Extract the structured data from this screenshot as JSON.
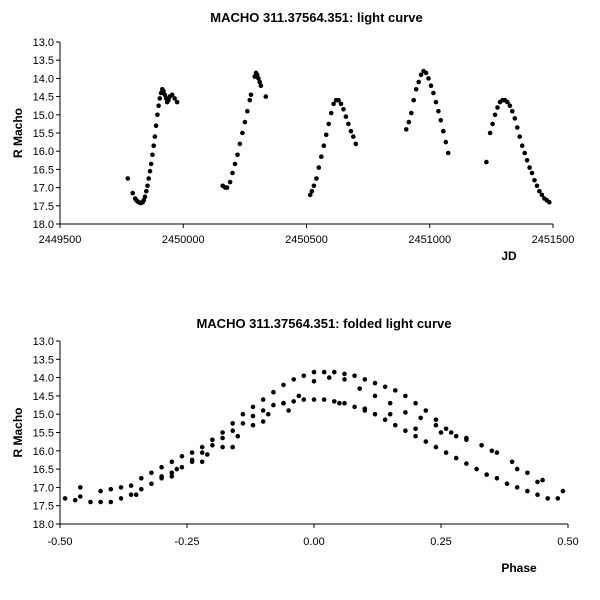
{
  "chart_data": [
    {
      "type": "scatter",
      "title": "MACHO 311.37564.351: light curve",
      "xlabel": "JD",
      "ylabel": "R Macho",
      "xlim": [
        2449500,
        2451500
      ],
      "ylim": [
        13.0,
        18.0
      ],
      "y_inverted": true,
      "grid": false,
      "legend": "none",
      "marker_color": "#000000",
      "xticks": [
        "2449500",
        "2450000",
        "2450500",
        "2451000",
        "2451500"
      ],
      "yticks": [
        "13.0",
        "13.5",
        "14.0",
        "14.5",
        "15.0",
        "15.5",
        "16.0",
        "16.5",
        "17.0",
        "17.5",
        "18.0"
      ],
      "series": [
        {
          "x": [
            2449775,
            2449795,
            2449805,
            2449810,
            2449815,
            2449820,
            2449825,
            2449830,
            2449835,
            2449840,
            2449845,
            2449850,
            2449855,
            2449860,
            2449865,
            2449870,
            2449875,
            2449880,
            2449885,
            2449890,
            2449895,
            2449900,
            2449905,
            2449910,
            2449915,
            2449920,
            2449925,
            2449930,
            2449935,
            2449940,
            2449945,
            2449955,
            2449965,
            2449975,
            2450160,
            2450170,
            2450178,
            2450190,
            2450200,
            2450210,
            2450220,
            2450230,
            2450240,
            2450250,
            2450260,
            2450270,
            2450275,
            2450290,
            2450295,
            2450300,
            2450305,
            2450310,
            2450315,
            2450335,
            2450515,
            2450522,
            2450530,
            2450540,
            2450550,
            2450560,
            2450570,
            2450580,
            2450590,
            2450600,
            2450610,
            2450620,
            2450630,
            2450640,
            2450650,
            2450660,
            2450670,
            2450680,
            2450690,
            2450700,
            2450905,
            2450915,
            2450925,
            2450935,
            2450945,
            2450955,
            2450965,
            2450975,
            2450985,
            2450995,
            2451005,
            2451015,
            2451025,
            2451035,
            2451045,
            2451055,
            2451065,
            2451075,
            2451230,
            2451245,
            2451255,
            2451265,
            2451275,
            2451285,
            2451295,
            2451305,
            2451315,
            2451325,
            2451335,
            2451345,
            2451355,
            2451365,
            2451375,
            2451385,
            2451395,
            2451405,
            2451415,
            2451425,
            2451435,
            2451445,
            2451455,
            2451465,
            2451475,
            2451485
          ],
          "y": [
            16.75,
            17.15,
            17.3,
            17.35,
            17.38,
            17.4,
            17.42,
            17.42,
            17.4,
            17.35,
            17.25,
            17.1,
            16.95,
            16.75,
            16.55,
            16.35,
            16.1,
            15.85,
            15.6,
            15.3,
            15.0,
            14.75,
            14.55,
            14.4,
            14.3,
            14.35,
            14.45,
            14.55,
            14.65,
            14.6,
            14.5,
            14.45,
            14.55,
            14.65,
            16.95,
            17.0,
            17.0,
            16.85,
            16.6,
            16.35,
            16.1,
            15.8,
            15.5,
            15.2,
            14.9,
            14.6,
            14.45,
            13.95,
            13.85,
            13.9,
            14.0,
            14.1,
            14.2,
            14.5,
            17.2,
            17.1,
            16.95,
            16.75,
            16.45,
            16.15,
            15.85,
            15.55,
            15.25,
            14.95,
            14.7,
            14.6,
            14.6,
            14.7,
            14.85,
            15.05,
            15.25,
            15.45,
            15.6,
            15.8,
            15.4,
            15.2,
            14.95,
            14.6,
            14.3,
            14.1,
            13.9,
            13.8,
            13.85,
            14.0,
            14.2,
            14.4,
            14.65,
            14.9,
            15.15,
            15.45,
            15.75,
            16.05,
            16.3,
            15.5,
            15.25,
            15.0,
            14.8,
            14.65,
            14.6,
            14.6,
            14.65,
            14.75,
            14.9,
            15.1,
            15.35,
            15.6,
            15.85,
            16.05,
            16.25,
            16.45,
            16.6,
            16.8,
            16.95,
            17.1,
            17.2,
            17.3,
            17.35,
            17.4
          ]
        }
      ]
    },
    {
      "type": "scatter",
      "title": "MACHO 311.37564.351: folded light curve",
      "xlabel": "Phase",
      "ylabel": "R Macho",
      "xlim": [
        -0.5,
        0.5
      ],
      "ylim": [
        13.0,
        18.0
      ],
      "y_inverted": true,
      "grid": false,
      "legend": "none",
      "marker_color": "#000000",
      "xticks": [
        "-0.50",
        "-0.25",
        "0.00",
        "0.25",
        "0.50"
      ],
      "yticks": [
        "13.0",
        "13.5",
        "14.0",
        "14.5",
        "15.0",
        "15.5",
        "16.0",
        "16.5",
        "17.0",
        "17.5",
        "18.0"
      ],
      "series": [
        {
          "x": [
            -0.49,
            -0.47,
            -0.46,
            -0.44,
            -0.42,
            -0.4,
            -0.38,
            -0.36,
            -0.34,
            -0.32,
            -0.3,
            -0.28,
            -0.26,
            -0.24,
            -0.22,
            -0.2,
            -0.18,
            -0.16,
            -0.14,
            -0.12,
            -0.1,
            -0.08,
            -0.06,
            -0.04,
            -0.02,
            0.0,
            0.02,
            0.04,
            0.06,
            0.08,
            0.1,
            0.12,
            0.14,
            0.16,
            0.18,
            0.2,
            0.22,
            0.24,
            0.26,
            0.28,
            0.3,
            0.32,
            0.34,
            0.36,
            0.38,
            0.4,
            0.42,
            0.44,
            0.46,
            0.48,
            0.49,
            -0.46,
            -0.42,
            -0.4,
            -0.38,
            -0.36,
            -0.34,
            -0.32,
            -0.3,
            -0.28,
            -0.26,
            -0.24,
            -0.22,
            -0.2,
            -0.18,
            -0.16,
            -0.14,
            -0.12,
            -0.1,
            -0.08,
            -0.06,
            -0.04,
            -0.02,
            0.0,
            0.02,
            0.04,
            0.06,
            0.08,
            0.1,
            0.12,
            0.14,
            0.16,
            0.18,
            0.2,
            0.22,
            0.24,
            0.26,
            0.28,
            -0.3,
            -0.27,
            -0.24,
            -0.21,
            -0.18,
            -0.15,
            -0.12,
            -0.09,
            -0.06,
            -0.03,
            0.0,
            0.03,
            0.06,
            0.09,
            0.12,
            0.15,
            0.18,
            0.21,
            0.24,
            0.27,
            0.3,
            0.33,
            0.36,
            0.39,
            0.42,
            0.45,
            -0.35,
            -0.28,
            -0.22,
            -0.16,
            -0.1,
            -0.05,
            0.05,
            0.1,
            0.15,
            0.2,
            0.25,
            0.3,
            0.35,
            0.4,
            0.44
          ],
          "y": [
            17.3,
            17.35,
            17.0,
            17.4,
            17.4,
            17.4,
            17.3,
            17.2,
            17.05,
            16.9,
            16.75,
            16.6,
            16.45,
            16.25,
            16.05,
            15.85,
            15.65,
            15.45,
            15.25,
            15.05,
            14.9,
            14.75,
            14.7,
            14.65,
            14.6,
            14.6,
            14.6,
            14.65,
            14.7,
            14.8,
            14.9,
            15.0,
            15.15,
            15.3,
            15.45,
            15.6,
            15.75,
            15.9,
            16.05,
            16.2,
            16.35,
            16.5,
            16.65,
            16.75,
            16.9,
            17.0,
            17.1,
            17.2,
            17.3,
            17.3,
            17.1,
            17.25,
            17.1,
            17.05,
            17.0,
            16.95,
            16.75,
            16.6,
            16.45,
            16.3,
            16.15,
            16.05,
            15.9,
            15.7,
            15.5,
            15.25,
            15.0,
            14.8,
            14.6,
            14.4,
            14.2,
            14.05,
            13.95,
            13.85,
            13.85,
            13.85,
            13.9,
            13.95,
            14.05,
            14.15,
            14.25,
            14.35,
            14.5,
            14.7,
            14.9,
            15.15,
            15.4,
            15.6,
            16.7,
            16.5,
            16.3,
            16.1,
            15.9,
            15.6,
            15.3,
            15.0,
            14.7,
            14.5,
            14.1,
            14.0,
            14.05,
            14.3,
            14.5,
            14.7,
            14.95,
            15.1,
            15.3,
            15.5,
            15.65,
            15.85,
            16.05,
            16.3,
            16.6,
            16.8,
            17.2,
            16.7,
            16.3,
            15.9,
            15.2,
            14.9,
            14.7,
            14.85,
            15.0,
            15.4,
            15.5,
            15.7,
            16.0,
            16.5,
            16.85
          ]
        }
      ]
    }
  ]
}
